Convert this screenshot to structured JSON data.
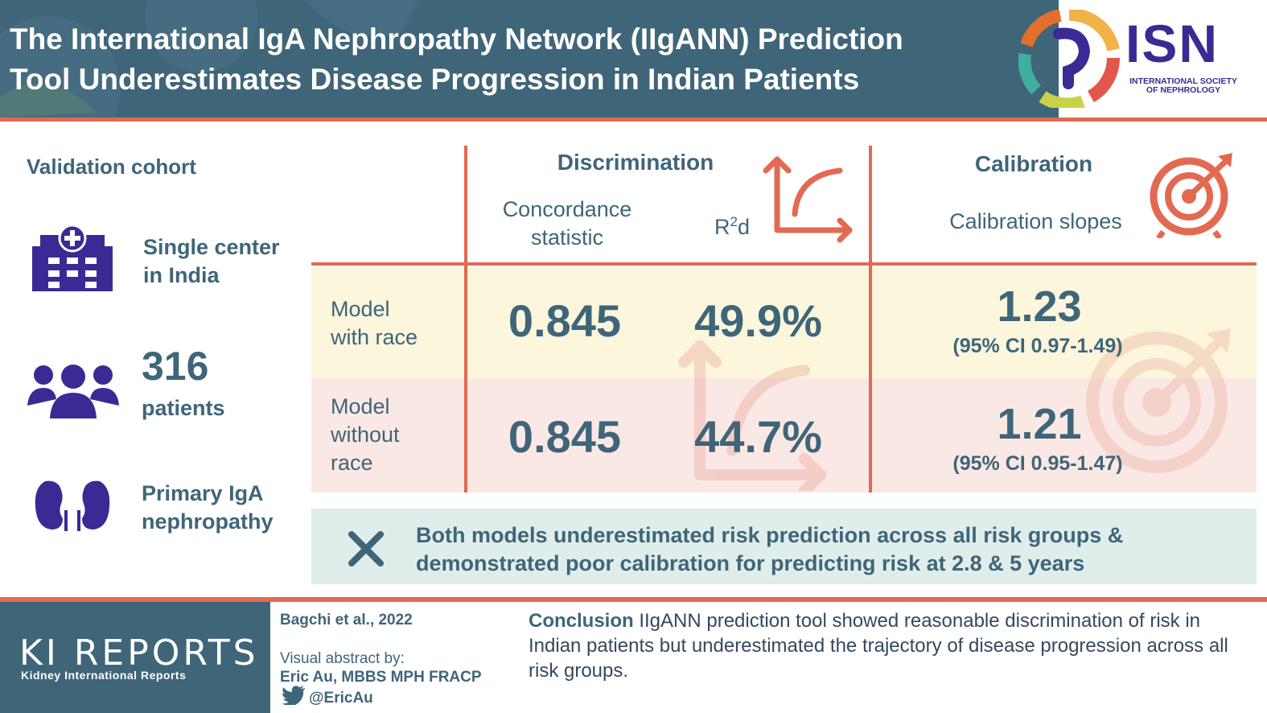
{
  "header": {
    "title_line1": "The International IgA Nephropathy Network (IIgANN) Prediction",
    "title_line2": "Tool Underestimates Disease Progression in Indian Patients",
    "logo_text": "ISN",
    "logo_sub_line1": "INTERNATIONAL SOCIETY",
    "logo_sub_line2": "OF NEPHROLOGY"
  },
  "cohort": {
    "title": "Validation cohort",
    "center_line1": "Single center",
    "center_line2": "in India",
    "count": "316",
    "count_label": "patients",
    "disease_line1": "Primary IgA",
    "disease_line2": "nephropathy",
    "icons": [
      "hospital-icon",
      "people-group-icon",
      "kidneys-icon"
    ]
  },
  "table": {
    "discrimination_head": "Discrimination",
    "concordance_line1": "Concordance",
    "concordance_line2": "statistic",
    "r2d_label_base": "R",
    "r2d_label_sup": "2",
    "r2d_label_end": "d",
    "calibration_head": "Calibration",
    "calibration_sub": "Calibration slopes",
    "rows": [
      {
        "label_lines": [
          "Model",
          "with race"
        ],
        "concordance": "0.845",
        "r2d": "49.9%",
        "slope": "1.23",
        "ci": "(95% CI 0.97-1.49)"
      },
      {
        "label_lines": [
          "Model",
          "without",
          "race"
        ],
        "concordance": "0.845",
        "r2d": "44.7%",
        "slope": "1.21",
        "ci": "(95% CI 0.95-1.47)"
      }
    ]
  },
  "note": {
    "line1": "Both models underestimated risk prediction across all risk groups &",
    "line2": "demonstrated poor calibration for predicting risk at 2.8 & 5 years"
  },
  "footer": {
    "journal_logo": "KI REPORTS",
    "journal_name": "Kidney International Reports",
    "citation": "Bagchi et al., 2022",
    "visual_abstract_label": "Visual abstract by:",
    "author": "Eric Au, MBBS MPH FRACP",
    "handle": "@EricAu",
    "conclusion_lead": "Conclusion",
    "conclusion_text": " IIgANN prediction tool showed reasonable discrimination of risk in Indian patients but underestimated the trajectory of disease progression across all risk groups."
  },
  "colors": {
    "header_bg": "#3f6579",
    "accent": "#e26a52",
    "isn_purple": "#3a2a94",
    "row_yellow": "#fbf6dc",
    "row_pink": "#fae8e5",
    "note_bg": "#dfeeeb"
  }
}
